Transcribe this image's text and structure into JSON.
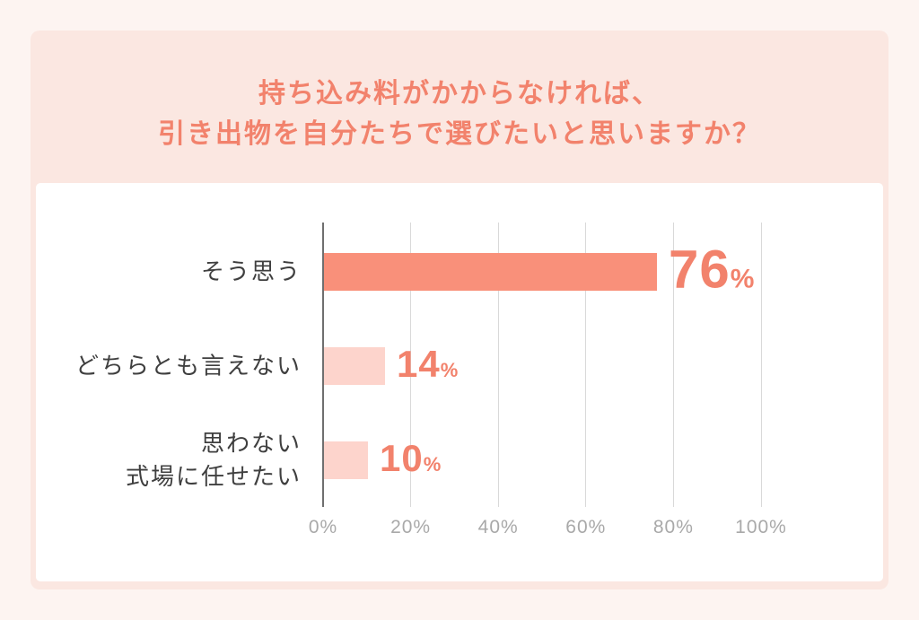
{
  "title": {
    "line1": "持ち込み料がかからなければ、",
    "line2": "引き出物を自分たちで選びたいと思いますか？"
  },
  "colors": {
    "page_bg": "#fdf4f1",
    "panel_bg": "#fbe7e1",
    "card_bg": "#ffffff",
    "accent_text": "#f2826c",
    "bar_primary": "#f9907a",
    "bar_light": "#fdd4cc",
    "label_text": "#3f3f3f",
    "tick_text": "#a9a9a9",
    "axis_line": "#6f6f6f",
    "grid_line": "#d9d9d9"
  },
  "chart_data": {
    "type": "bar",
    "orientation": "horizontal",
    "title": "持ち込み料がかからなければ、引き出物を自分たちで選びたいと思いますか？",
    "categories": [
      "そう思う",
      "どちらとも言えない",
      "思わない 式場に任せたい"
    ],
    "values": [
      76,
      14,
      10
    ],
    "unit": "%",
    "xlabel": "",
    "ylabel": "",
    "xlim": [
      0,
      100
    ],
    "x_ticks": [
      "0%",
      "20%",
      "40%",
      "60%",
      "80%",
      "100%"
    ],
    "grid": "vertical",
    "legend": "none",
    "rows": [
      {
        "label_lines": [
          "そう思う"
        ],
        "value": 76,
        "display": "76",
        "unit": "%",
        "style": "primary",
        "value_size": "large"
      },
      {
        "label_lines": [
          "どちらとも言えない"
        ],
        "value": 14,
        "display": "14",
        "unit": "%",
        "style": "light",
        "value_size": "small"
      },
      {
        "label_lines": [
          "思わない",
          "式場に任せたい"
        ],
        "value": 10,
        "display": "10",
        "unit": "%",
        "style": "light",
        "value_size": "small"
      }
    ]
  }
}
